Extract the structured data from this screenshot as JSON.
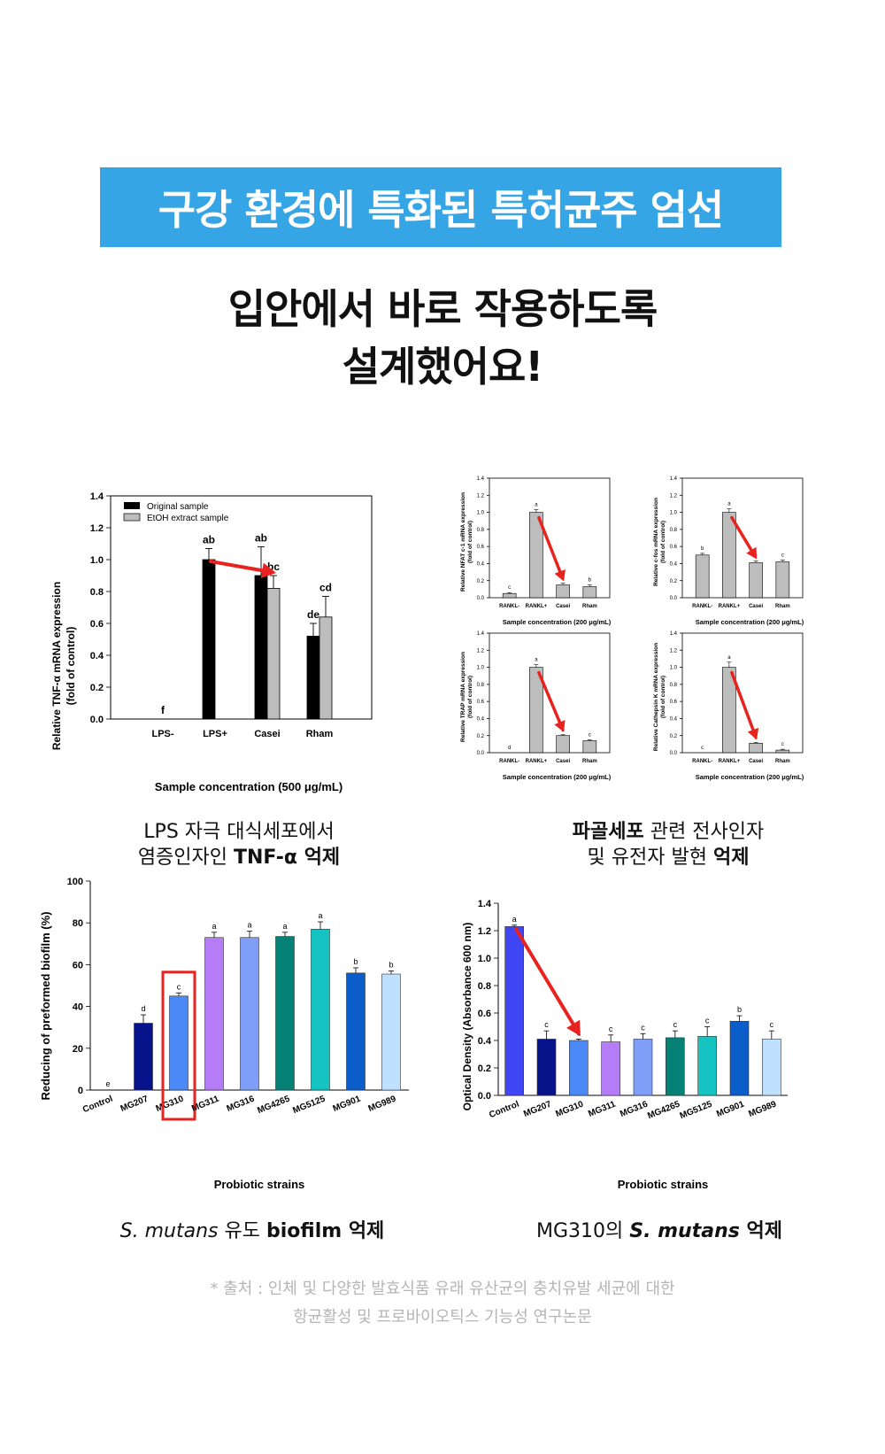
{
  "banner": {
    "title": "구강 환경에 특화된 특허균주 엄선"
  },
  "headline": {
    "line1": "입안에서 바로 작용하도록",
    "line2": "설계했어요!"
  },
  "captions": {
    "c1_line1": "LPS 자극 대식세포에서",
    "c1_line2_plain": "염증인자인 ",
    "c1_line2_bold": "TNF-α 억제",
    "c2_line1_bold": "파골세포",
    "c2_line1_plain": " 관련 전사인자",
    "c2_line2_plain": "및 유전자 발현 ",
    "c2_line2_bold": "억제",
    "c3_italic": "S. mutans",
    "c3_plain": " 유도 ",
    "c3_bold": "biofilm 억제",
    "c4_plain": "MG310의 ",
    "c4_bold_italic": "S. mutans",
    "c4_bold": " 억제"
  },
  "source": {
    "line1": "* 출처 : 인체 및 다양한 발효식품 유래 유산균의 충치유발 세균에 대한",
    "line2": "항균활성 및 프로바이오틱스 기능성 연구논문"
  },
  "colors": {
    "banner": "#36a5e5",
    "arrow": "#e8231f",
    "highlight": "#e8231f",
    "black_bar": "#000000",
    "gray_bar": "#bdbdbd"
  },
  "chart_data": [
    {
      "id": "tnf",
      "type": "bar",
      "ylabel_line1": "Relative TNF-α mRNA expression",
      "ylabel_line2": "(fold of control)",
      "xlabel": "Sample concentration (500 μg/mL)",
      "ylim": [
        0,
        1.4
      ],
      "yticks": [
        "0.0",
        "0.2",
        "0.4",
        "0.6",
        "0.8",
        "1.0",
        "1.2",
        "1.4"
      ],
      "categories": [
        "LPS-",
        "LPS+",
        "Casei",
        "Rham"
      ],
      "series": [
        {
          "name": "Original sample",
          "color": "#000000",
          "values": [
            0,
            1.0,
            0.9,
            0.52
          ],
          "errors": [
            0,
            0.07,
            0.18,
            0.08
          ],
          "letters": [
            "f",
            "ab",
            "ab",
            "de"
          ]
        },
        {
          "name": "EtOH extract sample",
          "color": "#bdbdbd",
          "values": [
            null,
            null,
            0.82,
            0.64
          ],
          "errors": [
            0,
            0,
            0.08,
            0.13
          ],
          "letters": [
            "",
            "",
            "bc",
            "cd"
          ]
        }
      ]
    },
    {
      "id": "nfatc1",
      "type": "bar",
      "ylabel_line1": "Relative NFAT c-1 mRNA expression",
      "ylabel_line2": "(fold of control)",
      "xlabel": "Sample concentration (200 μg/mL)",
      "ylim": [
        0,
        1.4
      ],
      "yticks": [
        "0.0",
        "0.2",
        "0.4",
        "0.6",
        "0.8",
        "1.0",
        "1.2",
        "1.4"
      ],
      "categories": [
        "RANKL-",
        "RANKL+",
        "Casei",
        "Rham"
      ],
      "values": [
        0.05,
        1.0,
        0.15,
        0.13
      ],
      "errors": [
        0.01,
        0.03,
        0.02,
        0.02
      ],
      "letters": [
        "c",
        "a",
        "b",
        "b"
      ]
    },
    {
      "id": "cfos",
      "type": "bar",
      "ylabel_line1": "Relative c-fos mRNA expression",
      "ylabel_line2": "(fold of control)",
      "xlabel": "Sample concentration (200 μg/mL)",
      "ylim": [
        0,
        1.4
      ],
      "yticks": [
        "0.0",
        "0.2",
        "0.4",
        "0.6",
        "0.8",
        "1.0",
        "1.2",
        "1.4"
      ],
      "categories": [
        "RANKL-",
        "RANKL+",
        "Casei",
        "Rham"
      ],
      "values": [
        0.5,
        1.0,
        0.41,
        0.42
      ],
      "errors": [
        0.02,
        0.04,
        0.02,
        0.02
      ],
      "letters": [
        "b",
        "a",
        "c",
        "c"
      ]
    },
    {
      "id": "trap",
      "type": "bar",
      "ylabel_line1": "Relative TRAP mRNA expression",
      "ylabel_line2": "(fold of control)",
      "xlabel": "Sample concentration (200 μg/mL)",
      "ylim": [
        0,
        1.4
      ],
      "yticks": [
        "0.0",
        "0.2",
        "0.4",
        "0.6",
        "0.8",
        "1.0",
        "1.2",
        "1.4"
      ],
      "categories": [
        "RANKL-",
        "RANKL+",
        "Casei",
        "Rham"
      ],
      "values": [
        0,
        1.0,
        0.2,
        0.14
      ],
      "errors": [
        0,
        0.03,
        0.01,
        0.01
      ],
      "letters": [
        "d",
        "a",
        "b",
        "c"
      ]
    },
    {
      "id": "ctsk",
      "type": "bar",
      "ylabel_line1": "Relative Cathepsin K mRNA expression",
      "ylabel_line2": "(fold of control)",
      "xlabel": "Sample concentration (200 μg/mL)",
      "ylim": [
        0,
        1.4
      ],
      "yticks": [
        "0.0",
        "0.2",
        "0.4",
        "0.6",
        "0.8",
        "1.0",
        "1.2",
        "1.4"
      ],
      "categories": [
        "RANKL-",
        "RANKL+",
        "Casei",
        "Rham"
      ],
      "values": [
        0,
        1.0,
        0.11,
        0.03
      ],
      "errors": [
        0,
        0.06,
        0.01,
        0.01
      ],
      "letters": [
        "c",
        "a",
        "b",
        "c"
      ]
    },
    {
      "id": "biofilm",
      "type": "bar",
      "ylabel_line1": "Reducing of preformed biofilm (%)",
      "xlabel": "Probiotic strains",
      "ylim": [
        0,
        100
      ],
      "yticks": [
        "0",
        "20",
        "40",
        "60",
        "80",
        "100"
      ],
      "categories": [
        "Control",
        "MG207",
        "MG310",
        "MG311",
        "MG316",
        "MG4265",
        "MG5125",
        "MG901",
        "MG989"
      ],
      "values": [
        0,
        32,
        45,
        73,
        73,
        73.5,
        77,
        56,
        55.5
      ],
      "errors": [
        0,
        4,
        1.5,
        2.5,
        3,
        2,
        3.5,
        2.5,
        1.5
      ],
      "letters": [
        "e",
        "d",
        "c",
        "a",
        "a",
        "a",
        "a",
        "b",
        "b"
      ],
      "colors": [
        "#ffffff",
        "#07138a",
        "#4a89f6",
        "#b57cf7",
        "#7e9ef8",
        "#068176",
        "#15c4c2",
        "#0b5ec9",
        "#bfe0ff"
      ],
      "highlight": "MG310"
    },
    {
      "id": "od",
      "type": "bar",
      "ylabel_line1": "Optical Density (Absorbance 600 nm)",
      "xlabel": "Probiotic strains",
      "ylim": [
        0,
        1.4
      ],
      "yticks": [
        "0.0",
        "0.2",
        "0.4",
        "0.6",
        "0.8",
        "1.0",
        "1.2",
        "1.4"
      ],
      "categories": [
        "Control",
        "MG207",
        "MG310",
        "MG311",
        "MG316",
        "MG4265",
        "MG5125",
        "MG901",
        "MG989"
      ],
      "values": [
        1.23,
        0.41,
        0.4,
        0.39,
        0.41,
        0.42,
        0.43,
        0.54,
        0.41
      ],
      "errors": [
        0.01,
        0.06,
        0.01,
        0.05,
        0.04,
        0.05,
        0.07,
        0.04,
        0.06
      ],
      "letters": [
        "a",
        "c",
        "c",
        "c",
        "c",
        "c",
        "c",
        "b",
        "c"
      ],
      "colors": [
        "#3f46f6",
        "#07138a",
        "#4a89f6",
        "#b57cf7",
        "#7e9ef8",
        "#068176",
        "#15c4c2",
        "#0b5ec9",
        "#bfe0ff"
      ]
    }
  ]
}
